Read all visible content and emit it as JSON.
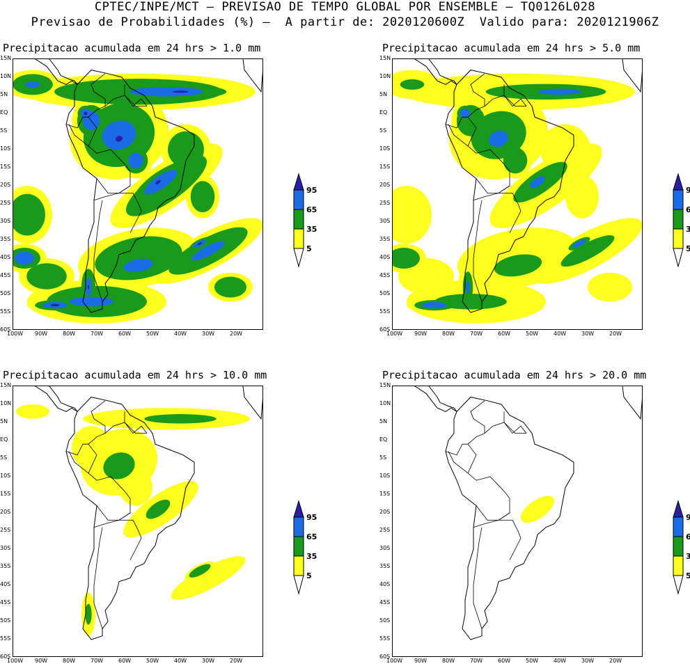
{
  "header": {
    "line1": "CPTEC/INPE/MCT – PREVISAO DE TEMPO GLOBAL POR ENSEMBLE – TQ0126L028",
    "line2": "Previsao de Probabilidades (%) –  A partir de: 2020120600Z  Valido para: 2020121906Z"
  },
  "palette": {
    "yellow": "#ffff1e",
    "green": "#1a9a1a",
    "blue": "#1c6be6",
    "navy": "#2a1fa8",
    "white": "#ffffff"
  },
  "legend": {
    "labels": [
      "95",
      "65",
      "35",
      "5"
    ]
  },
  "axes": {
    "lat_labels": [
      "15N",
      "10N",
      "5N",
      "EQ",
      "5S",
      "10S",
      "15S",
      "20S",
      "25S",
      "30S",
      "35S",
      "40S",
      "45S",
      "50S",
      "55S",
      "60S"
    ],
    "lon_labels": [
      "100W",
      "90W",
      "80W",
      "70W",
      "60W",
      "50W",
      "40W",
      "30W",
      "20W"
    ]
  },
  "panels": [
    {
      "title": "Precipitacao acumulada em 24 hrs > 1.0 mm",
      "intensity": 3
    },
    {
      "title": "Precipitacao acumulada em 24 hrs > 5.0 mm",
      "intensity": 2
    },
    {
      "title": "Precipitacao acumulada em 24 hrs > 10.0 mm",
      "intensity": 1
    },
    {
      "title": "Precipitacao acumulada em 24 hrs > 20.0 mm",
      "intensity": 0
    }
  ]
}
